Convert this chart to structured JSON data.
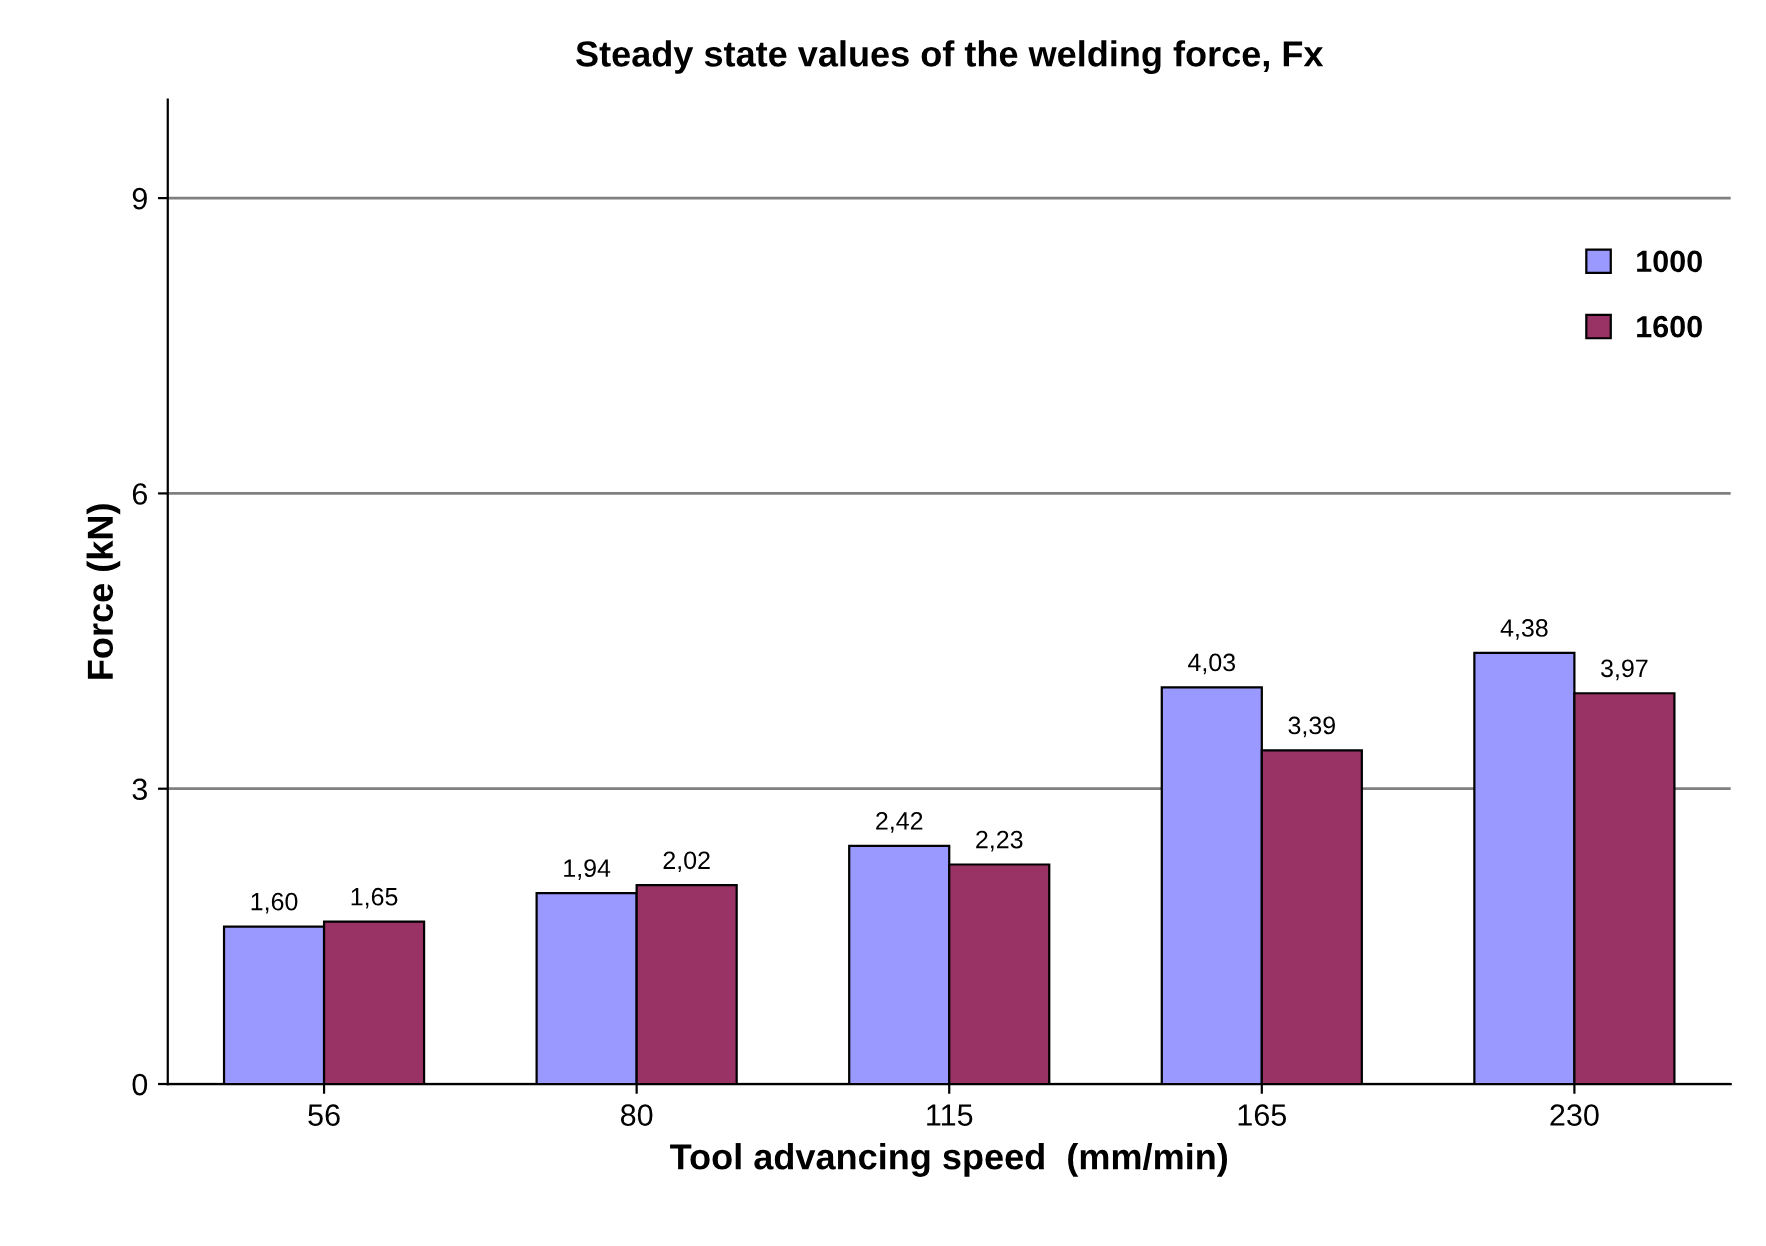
{
  "chart_data": {
    "type": "bar",
    "title": "Steady state values of the welding force, Fx",
    "xlabel": "Tool advancing speed  (mm/min)",
    "ylabel": "Force (kN)",
    "categories": [
      "56",
      "80",
      "115",
      "165",
      "230"
    ],
    "series": [
      {
        "name": "1000",
        "color": "#9999ff",
        "values": [
          1.6,
          1.94,
          2.42,
          4.03,
          4.38
        ],
        "value_labels": [
          "1,60",
          "1,94",
          "2,42",
          "4,03",
          "4,38"
        ]
      },
      {
        "name": "1600",
        "color": "#993366",
        "values": [
          1.65,
          2.02,
          2.23,
          3.39,
          3.97
        ],
        "value_labels": [
          "1,65",
          "2,02",
          "2,23",
          "3,39",
          "3,97"
        ]
      }
    ],
    "ylim": [
      0,
      10
    ],
    "yticks": [
      0,
      3,
      6,
      9
    ],
    "grid": "y",
    "legend": "right"
  }
}
